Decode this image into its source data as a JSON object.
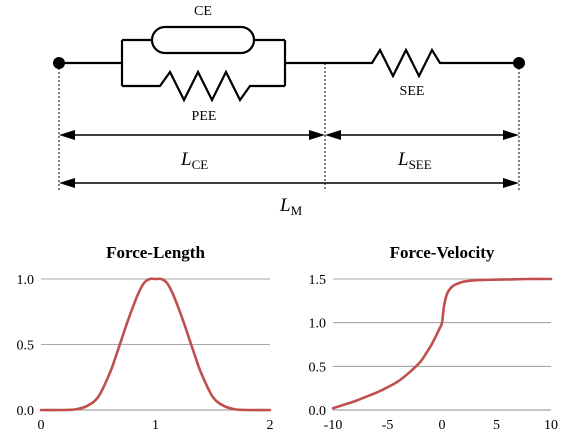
{
  "diagram": {
    "labels": {
      "ce": "CE",
      "pee": "PEE",
      "see": "SEE",
      "l_ce": {
        "main": "L",
        "sub": "CE"
      },
      "l_see": {
        "main": "L",
        "sub": "SEE"
      },
      "l_m": {
        "main": "L",
        "sub": "M"
      }
    }
  },
  "chart_data": [
    {
      "type": "line",
      "title": "Force-Length",
      "xlim": [
        0,
        2
      ],
      "ylim": [
        0,
        1
      ],
      "xticks": [
        "0",
        "1",
        "2"
      ],
      "yticks": [
        "0.0",
        "0.5",
        "1.0"
      ],
      "xtick_values": [
        0,
        1,
        2
      ],
      "ytick_values": [
        0,
        0.5,
        1.0
      ],
      "grid": "horizontal",
      "color": "#C0504D",
      "series": [
        {
          "x": [
            0,
            0.2,
            0.3,
            0.4,
            0.5,
            0.6,
            0.65,
            0.7,
            0.75,
            0.8,
            0.85,
            0.9,
            0.95,
            1.0,
            1.05,
            1.1,
            1.15,
            1.2,
            1.25,
            1.3,
            1.35,
            1.4,
            1.5,
            1.6,
            1.7,
            1.8,
            2.0
          ],
          "y": [
            0,
            0,
            0.005,
            0.03,
            0.1,
            0.28,
            0.4,
            0.53,
            0.66,
            0.78,
            0.89,
            0.97,
            1.0,
            1.0,
            1.0,
            0.97,
            0.89,
            0.78,
            0.66,
            0.53,
            0.4,
            0.28,
            0.1,
            0.03,
            0.005,
            0,
            0
          ]
        }
      ]
    },
    {
      "type": "line",
      "title": "Force-Velocity",
      "xlim": [
        -10,
        10
      ],
      "ylim": [
        0,
        1.5
      ],
      "xticks": [
        "-10",
        "-5",
        "0",
        "5",
        "10"
      ],
      "yticks": [
        "0.0",
        "0.5",
        "1.0",
        "1.5"
      ],
      "xtick_values": [
        -10,
        -5,
        0,
        5,
        10
      ],
      "ytick_values": [
        0,
        0.5,
        1.0,
        1.5
      ],
      "grid": "horizontal",
      "color": "#C0504D",
      "series": [
        {
          "x": [
            -10,
            -9,
            -8,
            -7,
            -6,
            -5,
            -4,
            -3,
            -2,
            -1.5,
            -1,
            -0.5,
            -0.2,
            0,
            0.2,
            0.5,
            1,
            1.5,
            2,
            3,
            4,
            6,
            8,
            10
          ],
          "y": [
            0.02,
            0.06,
            0.1,
            0.15,
            0.2,
            0.26,
            0.33,
            0.43,
            0.55,
            0.64,
            0.74,
            0.86,
            0.94,
            1.0,
            1.2,
            1.34,
            1.42,
            1.45,
            1.47,
            1.485,
            1.49,
            1.495,
            1.5,
            1.5
          ]
        }
      ]
    }
  ]
}
